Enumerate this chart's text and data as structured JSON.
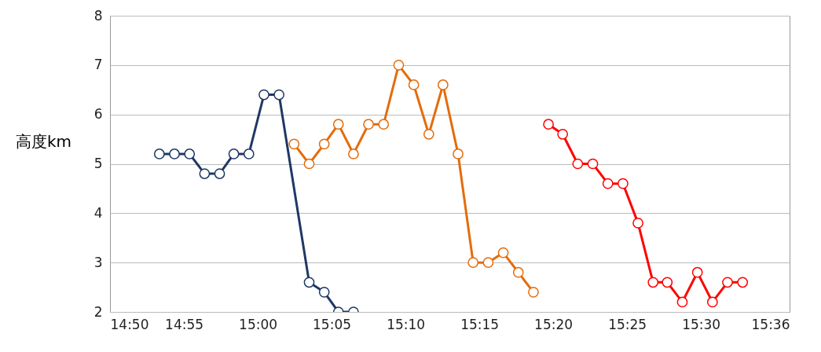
{
  "chart_data": {
    "type": "line",
    "ylabel": "高度km",
    "xlim": [
      14.8333,
      15.6
    ],
    "xticks": [
      {
        "value": 14.8333,
        "label": "14:50"
      },
      {
        "value": 14.9167,
        "label": "14:55"
      },
      {
        "value": 15.0,
        "label": "15:00"
      },
      {
        "value": 15.0833,
        "label": "15:05"
      },
      {
        "value": 15.1667,
        "label": "15:10"
      },
      {
        "value": 15.25,
        "label": "15:15"
      },
      {
        "value": 15.3333,
        "label": "15:20"
      },
      {
        "value": 15.4167,
        "label": "15:25"
      },
      {
        "value": 15.5,
        "label": "15:30"
      },
      {
        "value": 15.6,
        "label": "15:36"
      }
    ],
    "ylim": [
      2,
      8
    ],
    "yticks": [
      2,
      3,
      4,
      5,
      6,
      7,
      8
    ],
    "grid": "y",
    "marker": "circle",
    "series": [
      {
        "color": "#1f3864",
        "x": [
          14.889,
          14.906,
          14.923,
          14.94,
          14.957,
          14.973,
          14.99,
          15.007,
          15.024,
          15.058,
          15.075,
          15.091,
          15.108
        ],
        "values": [
          5.2,
          5.2,
          5.2,
          4.8,
          4.8,
          5.2,
          5.2,
          6.4,
          6.4,
          2.6,
          2.4,
          2.0,
          2.0
        ]
      },
      {
        "color": "#e46c0a",
        "x": [
          15.041,
          15.058,
          15.075,
          15.091,
          15.108,
          15.125,
          15.142,
          15.159,
          15.176,
          15.193,
          15.209,
          15.226,
          15.243,
          15.26,
          15.277,
          15.294,
          15.311
        ],
        "values": [
          5.4,
          5.0,
          5.4,
          5.8,
          5.2,
          5.8,
          5.8,
          7.0,
          6.6,
          5.6,
          6.6,
          5.2,
          3.0,
          3.0,
          3.2,
          2.8,
          2.4
        ]
      },
      {
        "color": "#ff0000",
        "x": [
          15.328,
          15.344,
          15.361,
          15.378,
          15.395,
          15.412,
          15.429,
          15.446,
          15.462,
          15.479,
          15.496,
          15.513,
          15.53,
          15.547
        ],
        "values": [
          5.8,
          5.6,
          5.0,
          5.0,
          4.6,
          4.6,
          3.8,
          2.6,
          2.6,
          2.2,
          2.8,
          2.2,
          2.6,
          2.6
        ]
      }
    ]
  }
}
